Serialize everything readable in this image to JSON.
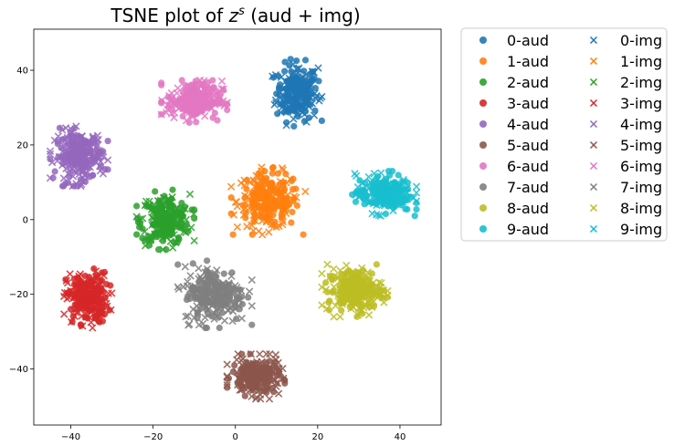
{
  "chart_data": {
    "type": "scatter",
    "title": "TSNE plot of z^s (aud + img)",
    "title_parts": {
      "prefix": "TSNE plot of ",
      "var": "z",
      "sup": "s",
      "suffix": " (aud + img)"
    },
    "xlabel": "",
    "ylabel": "",
    "xlim": [
      -49,
      50
    ],
    "ylim": [
      -55,
      51
    ],
    "xticks": [
      -40,
      -20,
      0,
      20,
      40
    ],
    "yticks": [
      -40,
      -20,
      0,
      20,
      40
    ],
    "grid": false,
    "legend": {
      "placement": "outside-right",
      "columns": 2
    },
    "series": [
      {
        "name": "0-aud",
        "marker": "circle",
        "color": "#1f77b4"
      },
      {
        "name": "1-aud",
        "marker": "circle",
        "color": "#ff7f0e"
      },
      {
        "name": "2-aud",
        "marker": "circle",
        "color": "#2ca02c"
      },
      {
        "name": "3-aud",
        "marker": "circle",
        "color": "#d62728"
      },
      {
        "name": "4-aud",
        "marker": "circle",
        "color": "#9467bd"
      },
      {
        "name": "5-aud",
        "marker": "circle",
        "color": "#8c564b"
      },
      {
        "name": "6-aud",
        "marker": "circle",
        "color": "#e377c2"
      },
      {
        "name": "7-aud",
        "marker": "circle",
        "color": "#7f7f7f"
      },
      {
        "name": "8-aud",
        "marker": "circle",
        "color": "#bcbd22"
      },
      {
        "name": "9-aud",
        "marker": "circle",
        "color": "#17becf"
      },
      {
        "name": "0-img",
        "marker": "x",
        "color": "#1f77b4"
      },
      {
        "name": "1-img",
        "marker": "x",
        "color": "#ff7f0e"
      },
      {
        "name": "2-img",
        "marker": "x",
        "color": "#2ca02c"
      },
      {
        "name": "3-img",
        "marker": "x",
        "color": "#d62728"
      },
      {
        "name": "4-img",
        "marker": "x",
        "color": "#9467bd"
      },
      {
        "name": "5-img",
        "marker": "x",
        "color": "#8c564b"
      },
      {
        "name": "6-img",
        "marker": "x",
        "color": "#e377c2"
      },
      {
        "name": "7-img",
        "marker": "x",
        "color": "#7f7f7f"
      },
      {
        "name": "8-img",
        "marker": "x",
        "color": "#bcbd22"
      },
      {
        "name": "9-img",
        "marker": "x",
        "color": "#17becf"
      }
    ],
    "clusters": [
      {
        "digit": 0,
        "center": [
          15,
          34
        ],
        "spread": [
          6,
          9
        ]
      },
      {
        "digit": 1,
        "center": [
          8,
          5
        ],
        "spread": [
          9,
          9
        ]
      },
      {
        "digit": 2,
        "center": [
          -17,
          0
        ],
        "spread": [
          7,
          8
        ]
      },
      {
        "digit": 3,
        "center": [
          -36,
          -21
        ],
        "spread": [
          6,
          8
        ]
      },
      {
        "digit": 4,
        "center": [
          -38,
          17
        ],
        "spread": [
          7,
          8
        ]
      },
      {
        "digit": 5,
        "center": [
          5,
          -42
        ],
        "spread": [
          7,
          6
        ]
      },
      {
        "digit": 6,
        "center": [
          -10,
          32
        ],
        "spread": [
          8,
          6
        ]
      },
      {
        "digit": 7,
        "center": [
          -5,
          -20
        ],
        "spread": [
          9,
          9
        ]
      },
      {
        "digit": 8,
        "center": [
          29,
          -19
        ],
        "spread": [
          8,
          7
        ]
      },
      {
        "digit": 9,
        "center": [
          36,
          7
        ],
        "spread": [
          8,
          6
        ]
      }
    ],
    "points_per_marker_per_cluster": 120
  }
}
